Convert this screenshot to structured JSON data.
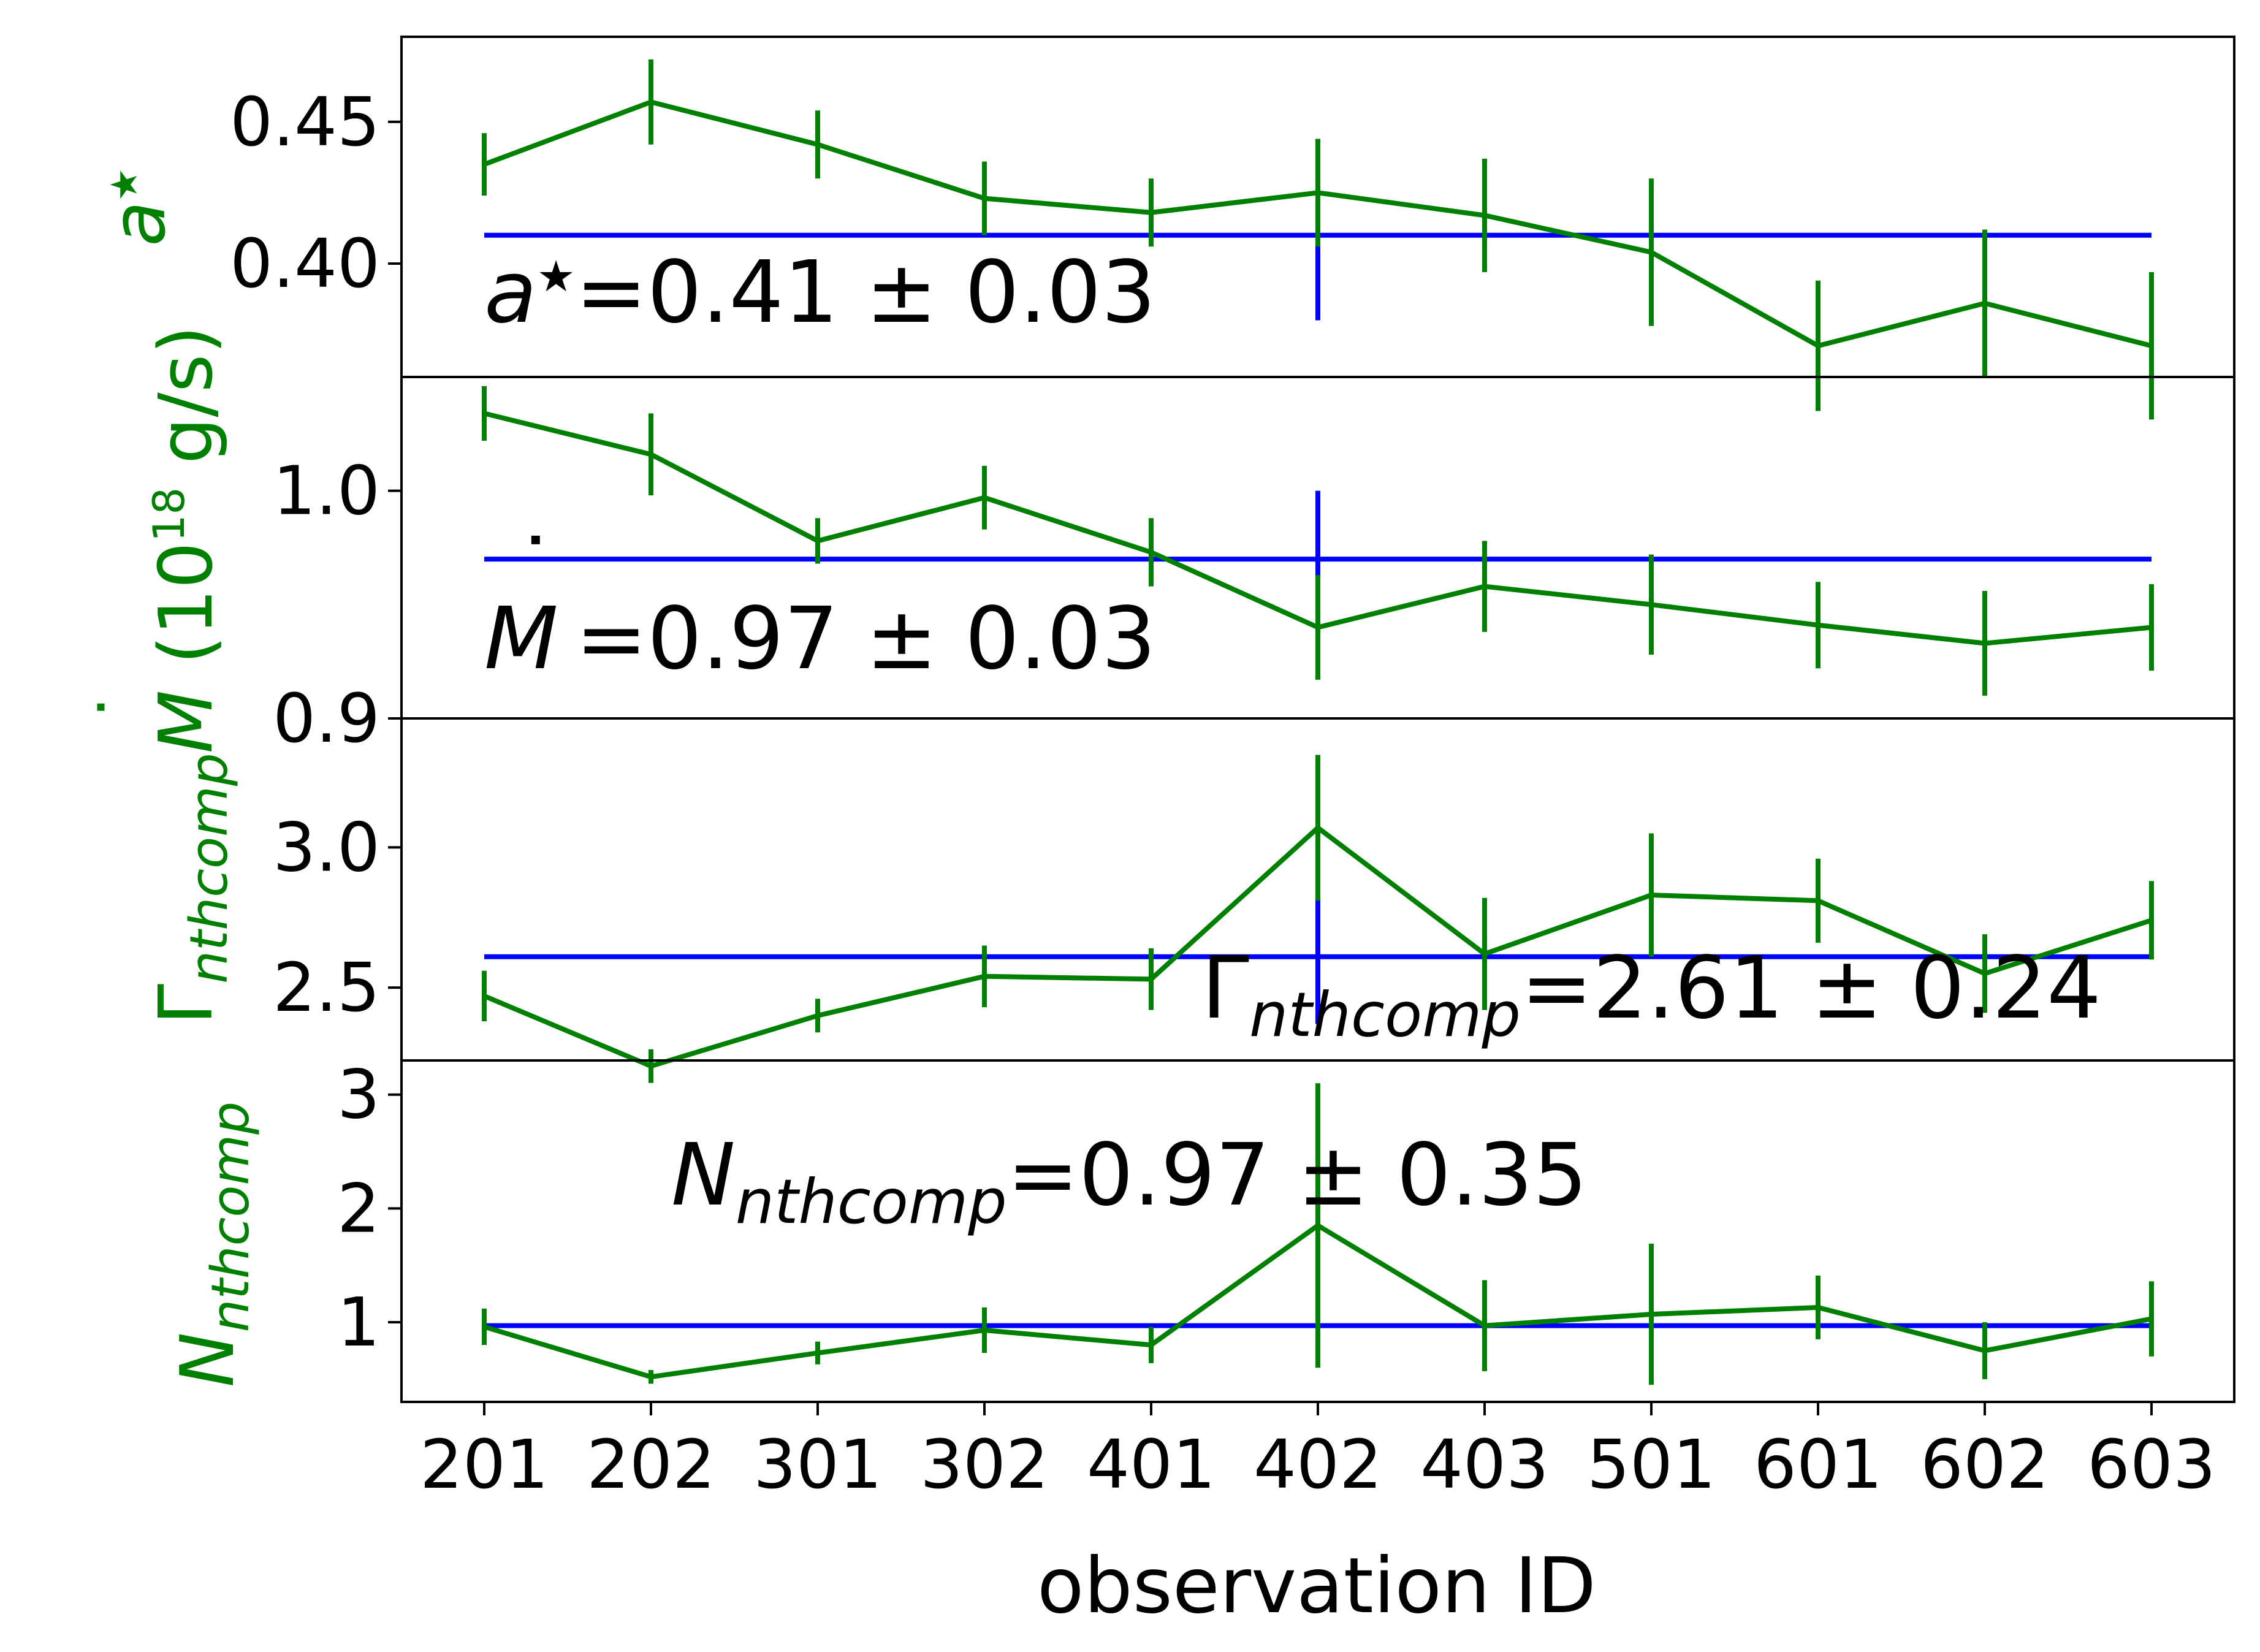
{
  "colors": {
    "series": "#008000",
    "mean": "#0000ff",
    "axes": "#000000"
  },
  "chart_data": {
    "type": "line",
    "shared_x": [
      "201",
      "202",
      "301",
      "302",
      "401",
      "402",
      "403",
      "501",
      "601",
      "602",
      "603"
    ],
    "xlabel": "observation ID",
    "panels": [
      {
        "ylabel": "a★",
        "ylim": [
          0.36,
          0.48
        ],
        "yticks": [
          "0.40",
          "0.45"
        ],
        "values": [
          0.435,
          0.457,
          0.442,
          0.423,
          0.418,
          0.425,
          0.417,
          0.404,
          0.371,
          0.386,
          0.371
        ],
        "errors": [
          0.011,
          0.015,
          0.012,
          0.013,
          0.012,
          0.019,
          0.02,
          0.026,
          0.023,
          0.026,
          0.026
        ],
        "mean": 0.41,
        "mean_err": 0.03,
        "annotation": "a★=0.41 ± 0.03"
      },
      {
        "ylabel": "Ṁ (10^18 g/s)",
        "ylim": [
          0.9,
          1.05
        ],
        "yticks": [
          "0.9",
          "1.0"
        ],
        "values": [
          1.034,
          1.016,
          0.978,
          0.997,
          0.973,
          0.94,
          0.958,
          0.95,
          0.941,
          0.933,
          0.94
        ],
        "errors": [
          0.012,
          0.018,
          0.01,
          0.014,
          0.015,
          0.023,
          0.02,
          0.022,
          0.019,
          0.023,
          0.019
        ],
        "mean": 0.97,
        "mean_err": 0.03,
        "annotation": "Ṁ=0.97 ± 0.03"
      },
      {
        "ylabel": "Γnthcomp",
        "ylim": [
          2.24,
          3.46
        ],
        "yticks": [
          "2.5",
          "3.0"
        ],
        "values": [
          2.47,
          2.22,
          2.4,
          2.54,
          2.53,
          3.07,
          2.62,
          2.83,
          2.81,
          2.55,
          2.74
        ],
        "errors": [
          0.09,
          0.06,
          0.06,
          0.11,
          0.11,
          0.26,
          0.2,
          0.22,
          0.15,
          0.14,
          0.14
        ],
        "mean": 2.61,
        "mean_err": 0.24,
        "annotation": "Γnthcomp=2.61 ± 0.24"
      },
      {
        "ylabel": "Nnthcomp",
        "ylim": [
          0.3,
          3.3
        ],
        "yticks": [
          "1",
          "2",
          "3"
        ],
        "values": [
          0.96,
          0.52,
          0.73,
          0.93,
          0.8,
          1.85,
          0.97,
          1.07,
          1.13,
          0.75,
          1.03
        ],
        "errors": [
          0.16,
          0.06,
          0.1,
          0.2,
          0.16,
          1.25,
          0.4,
          0.62,
          0.28,
          0.25,
          0.33
        ],
        "mean": 0.97,
        "mean_err": 0.35,
        "annotation": "Nnthcomp=0.97 ± 0.35"
      }
    ],
    "labels": {
      "p1_a": "a",
      "p1_star": "★",
      "p1_annot_val": "=0.41 ± 0.03",
      "p2_mdot": "M",
      "p2_dot": "˙",
      "p2_unit_open": "(10",
      "p2_exp": "18",
      "p2_unit_close": " g/s)",
      "p2_annot_val": "=0.97 ± 0.03",
      "p3_gamma": "Γ",
      "p3_sub": "nthcomp",
      "p3_annot_val": "=2.61 ± 0.24",
      "p4_n": "N",
      "p4_sub": "nthcomp",
      "p4_annot_val": "=0.97 ± 0.35"
    }
  }
}
